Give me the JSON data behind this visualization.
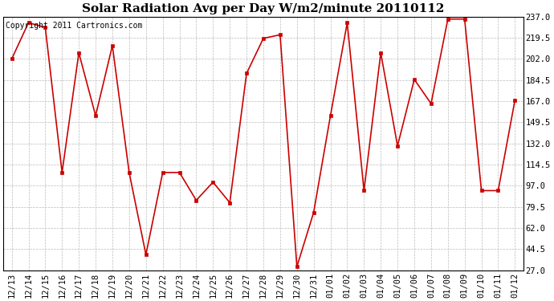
{
  "title": "Solar Radiation Avg per Day W/m2/minute 20110112",
  "copyright_text": "Copyright 2011 Cartronics.com",
  "x_labels": [
    "12/13",
    "12/14",
    "12/15",
    "12/16",
    "12/17",
    "12/18",
    "12/19",
    "12/20",
    "12/21",
    "12/22",
    "12/23",
    "12/24",
    "12/25",
    "12/26",
    "12/27",
    "12/28",
    "12/29",
    "12/30",
    "12/31",
    "01/01",
    "01/02",
    "01/03",
    "01/04",
    "01/05",
    "01/06",
    "01/07",
    "01/08",
    "01/09",
    "01/10",
    "01/11",
    "01/12"
  ],
  "y_values": [
    202.0,
    232.0,
    228.0,
    108.0,
    207.0,
    155.0,
    213.0,
    108.0,
    40.0,
    108.0,
    108.0,
    85.0,
    100.0,
    83.0,
    190.0,
    219.0,
    222.0,
    30.0,
    75.0,
    155.0,
    232.0,
    93.0,
    207.0,
    130.0,
    185.0,
    165.0,
    235.0,
    235.0,
    93.0,
    93.0,
    168.0
  ],
  "line_color": "#cc0000",
  "marker_color": "#cc0000",
  "bg_color": "#ffffff",
  "grid_color": "#bbbbbb",
  "y_ticks": [
    27.0,
    44.5,
    62.0,
    79.5,
    97.0,
    114.5,
    132.0,
    149.5,
    167.0,
    184.5,
    202.0,
    219.5,
    237.0
  ],
  "y_min": 27.0,
  "y_max": 237.0,
  "title_fontsize": 11,
  "copyright_fontsize": 7,
  "tick_fontsize": 7.5
}
